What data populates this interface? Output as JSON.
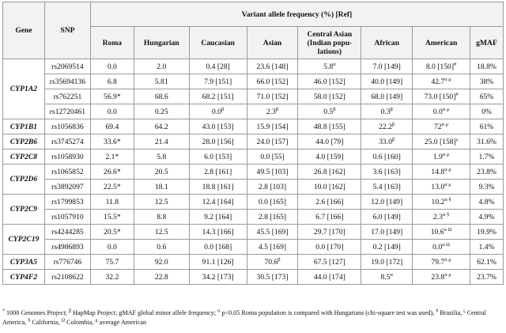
{
  "header": {
    "gene": "Gene",
    "snp": "SNP",
    "group": "Variant allele frequency (%) [Ref]",
    "populations": [
      "Roma",
      "Hungarian",
      "Caucasian",
      "Asian",
      "Central Asian (Indian popu-lations)",
      "African",
      "American",
      "gMAF"
    ]
  },
  "rows": [
    {
      "gene": "CYP1A2",
      "snp": "rs2069514",
      "cells": [
        [
          "0.0",
          ""
        ],
        [
          "2.0",
          ""
        ],
        [
          "0.4 [28]",
          ""
        ],
        [
          "23.6 [148]",
          ""
        ],
        [
          "5.8",
          "α"
        ],
        [
          "7.0 [149]",
          ""
        ],
        [
          "8.0 [150]",
          "#"
        ],
        [
          "18.8%",
          ""
        ]
      ]
    },
    {
      "gene": "",
      "snp": "rs35694136",
      "cells": [
        [
          "6.8",
          ""
        ],
        [
          "5.81",
          ""
        ],
        [
          "7.9 [151]",
          ""
        ],
        [
          "66.0 [152]",
          ""
        ],
        [
          "46.0 [152]",
          ""
        ],
        [
          "40.0 [149]",
          ""
        ],
        [
          "42.7",
          "α μ"
        ],
        [
          "38%",
          ""
        ]
      ]
    },
    {
      "gene": "",
      "snp": "rs762251",
      "cells": [
        [
          "56.9*",
          ""
        ],
        [
          "68.6",
          ""
        ],
        [
          "68.2 [151]",
          ""
        ],
        [
          "71.0 [152]",
          ""
        ],
        [
          "58.0 [152]",
          ""
        ],
        [
          "68.0 [149]",
          ""
        ],
        [
          "73.0 [150]",
          "#"
        ],
        [
          "65%",
          ""
        ]
      ]
    },
    {
      "gene": "",
      "snp": "rs12720461",
      "cells": [
        [
          "0.0",
          ""
        ],
        [
          "0.25",
          ""
        ],
        [
          "0.0",
          "β"
        ],
        [
          "2.3",
          "β"
        ],
        [
          "0.5",
          "β"
        ],
        [
          "0.3",
          "β"
        ],
        [
          "0.0",
          "α μ"
        ],
        [
          "0%",
          ""
        ]
      ]
    },
    {
      "gene": "CYP1B1",
      "snp": "rs1056836",
      "cells": [
        [
          "69.4",
          ""
        ],
        [
          "64.2",
          ""
        ],
        [
          "43.0 [153]",
          ""
        ],
        [
          "15.9 [154]",
          ""
        ],
        [
          "48.8 [155]",
          ""
        ],
        [
          "22.2",
          "β"
        ],
        [
          "72",
          "α μ"
        ],
        [
          "61%",
          ""
        ]
      ]
    },
    {
      "gene": "CYP2B6",
      "snp": "rs3745274",
      "cells": [
        [
          "33.6*",
          ""
        ],
        [
          "21.4",
          ""
        ],
        [
          "28.0 [156]",
          ""
        ],
        [
          "24.0 [157]",
          ""
        ],
        [
          "44.0 [79]",
          ""
        ],
        [
          "33.0",
          "β"
        ],
        [
          "25.0 [158]",
          "ς"
        ],
        [
          "31.6%",
          ""
        ]
      ]
    },
    {
      "gene": "CYP2C8",
      "snp": "rs1058930",
      "cells": [
        [
          "2.1*",
          ""
        ],
        [
          "5.8",
          ""
        ],
        [
          "6.0 [153]",
          ""
        ],
        [
          "0.0 [55]",
          ""
        ],
        [
          "4.0 [159]",
          ""
        ],
        [
          "0.6 [160]",
          ""
        ],
        [
          "1.9",
          "α μ"
        ],
        [
          "1.7%",
          ""
        ]
      ]
    },
    {
      "gene": "CYP2D6",
      "snp": "rs1065852",
      "cells": [
        [
          "26.6*",
          ""
        ],
        [
          "20.5",
          ""
        ],
        [
          "2.8 [161]",
          ""
        ],
        [
          "49.5 [103]",
          ""
        ],
        [
          "26.8 [162]",
          ""
        ],
        [
          "3.6 [163]",
          ""
        ],
        [
          "14.8",
          "α μ"
        ],
        [
          "23.8%",
          ""
        ]
      ]
    },
    {
      "gene": "",
      "snp": "rs3892097",
      "cells": [
        [
          "22.5*",
          ""
        ],
        [
          "18.1",
          ""
        ],
        [
          "18.8 [161]",
          ""
        ],
        [
          "2.8 [103]",
          ""
        ],
        [
          "10.0 [162]",
          ""
        ],
        [
          "5.4 [163]",
          ""
        ],
        [
          "13.0",
          "α μ"
        ],
        [
          "9.3%",
          ""
        ]
      ]
    },
    {
      "gene": "CYP2C9",
      "snp": "rs1799853",
      "cells": [
        [
          "11.8",
          ""
        ],
        [
          "12.5",
          ""
        ],
        [
          "12.4 [164]",
          ""
        ],
        [
          "0.0 [165]",
          ""
        ],
        [
          "2.6 [166]",
          ""
        ],
        [
          "12.0 [149]",
          ""
        ],
        [
          "10.2",
          "α §"
        ],
        [
          "4.8%",
          ""
        ]
      ]
    },
    {
      "gene": "",
      "snp": "rs1057910",
      "cells": [
        [
          "15.5*",
          ""
        ],
        [
          "8.8",
          ""
        ],
        [
          "9.2 [164]",
          ""
        ],
        [
          "2.8 [165]",
          ""
        ],
        [
          "6.7 [166]",
          ""
        ],
        [
          "6.0 [149]",
          ""
        ],
        [
          "2.3",
          "α §"
        ],
        [
          "4.9%",
          ""
        ]
      ]
    },
    {
      "gene": "CYP2C19",
      "snp": "rs4244285",
      "cells": [
        [
          "20.5*",
          ""
        ],
        [
          "12.5",
          ""
        ],
        [
          "14.3 [166]",
          ""
        ],
        [
          "45.5 [169]",
          ""
        ],
        [
          "29.7 [170]",
          ""
        ],
        [
          "17.0 [149]",
          ""
        ],
        [
          "10.6",
          "α Ω"
        ],
        [
          "19.9%",
          ""
        ]
      ]
    },
    {
      "gene": "",
      "snp": "rs4986893",
      "cells": [
        [
          "0.0",
          ""
        ],
        [
          "0.6",
          ""
        ],
        [
          "0.0 [168]",
          ""
        ],
        [
          "4.5 [169]",
          ""
        ],
        [
          "0.0 [170]",
          ""
        ],
        [
          "0.2 [149]",
          ""
        ],
        [
          "0.0",
          "α Ω"
        ],
        [
          "1.4%",
          ""
        ]
      ]
    },
    {
      "gene": "CYP3A5",
      "snp": "rs776746",
      "cells": [
        [
          "75.7",
          ""
        ],
        [
          "92.0",
          ""
        ],
        [
          "91.1 [126]",
          ""
        ],
        [
          "70.6",
          "β"
        ],
        [
          "67.5 [127]",
          ""
        ],
        [
          "19.0 [172]",
          ""
        ],
        [
          "79.7",
          "α μ"
        ],
        [
          "62.1%",
          ""
        ]
      ]
    },
    {
      "gene": "CYP4F2",
      "snp": "rs2108622",
      "cells": [
        [
          "32.2",
          ""
        ],
        [
          "22.8",
          ""
        ],
        [
          "34.2 [173]",
          ""
        ],
        [
          "30.5 [173]",
          ""
        ],
        [
          "44.0 [174]",
          ""
        ],
        [
          "8.5",
          "α"
        ],
        [
          "23.8",
          "α μ"
        ],
        [
          "23.7%",
          ""
        ]
      ]
    }
  ],
  "footnote": {
    "m_alpha": "α",
    "t1": " 1000 Genomes Project; ",
    "m_beta": "β",
    "t2": " HapMap Project; gMAF global minor allele frequency; ",
    "m_star": "*",
    "t3": " p<0.05 Roma population is compared with Hungarians (chi-square test was used), ",
    "m_hash": "#",
    "t4": " Brazilia, ",
    "m_varsigma": "ς",
    "t5": " Central America, ",
    "m_sect": "§",
    "t6": " California, ",
    "m_omega": "Ω",
    "t7": " Colombia, ",
    "m_mu": "μ",
    "t8": " average American"
  }
}
